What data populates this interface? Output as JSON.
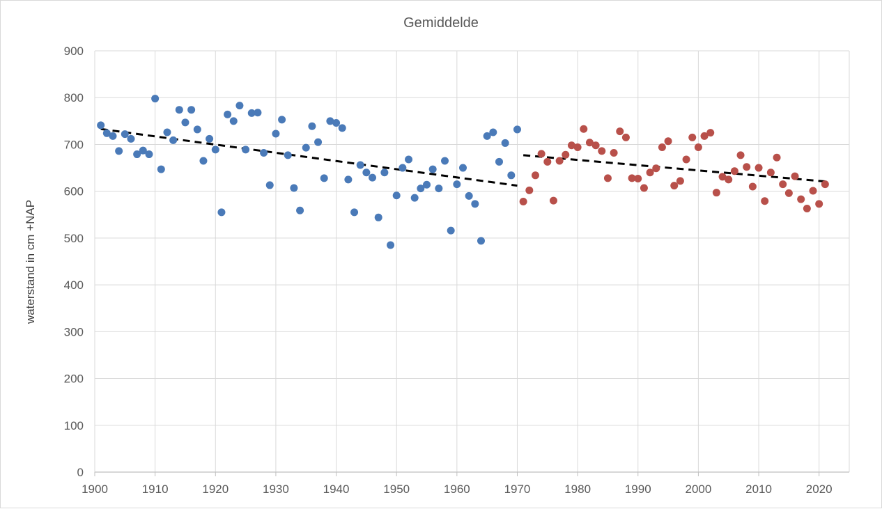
{
  "chart_data": {
    "type": "scatter",
    "title": "Gemiddelde",
    "xlabel": "",
    "ylabel": "waterstand in cm +NAP",
    "xlim": [
      1900,
      2025
    ],
    "ylim": [
      0,
      900
    ],
    "xticks": [
      1900,
      1910,
      1920,
      1930,
      1940,
      1950,
      1960,
      1970,
      1980,
      1990,
      2000,
      2010,
      2020
    ],
    "yticks": [
      0,
      100,
      200,
      300,
      400,
      500,
      600,
      700,
      800,
      900
    ],
    "grid": true,
    "legend": "none",
    "series": [
      {
        "color": "#4a7ab8",
        "points": [
          [
            1901,
            741
          ],
          [
            1902,
            724
          ],
          [
            1903,
            718
          ],
          [
            1904,
            686
          ],
          [
            1905,
            722
          ],
          [
            1906,
            712
          ],
          [
            1907,
            679
          ],
          [
            1908,
            687
          ],
          [
            1909,
            679
          ],
          [
            1910,
            798
          ],
          [
            1911,
            647
          ],
          [
            1912,
            726
          ],
          [
            1913,
            709
          ],
          [
            1914,
            774
          ],
          [
            1915,
            747
          ],
          [
            1916,
            774
          ],
          [
            1917,
            732
          ],
          [
            1918,
            665
          ],
          [
            1919,
            712
          ],
          [
            1920,
            689
          ],
          [
            1921,
            555
          ],
          [
            1922,
            764
          ],
          [
            1923,
            750
          ],
          [
            1924,
            783
          ],
          [
            1925,
            689
          ],
          [
            1926,
            767
          ],
          [
            1927,
            768
          ],
          [
            1928,
            682
          ],
          [
            1929,
            613
          ],
          [
            1930,
            723
          ],
          [
            1931,
            753
          ],
          [
            1932,
            677
          ],
          [
            1933,
            607
          ],
          [
            1934,
            559
          ],
          [
            1935,
            693
          ],
          [
            1936,
            739
          ],
          [
            1937,
            705
          ],
          [
            1938,
            628
          ],
          [
            1939,
            750
          ],
          [
            1940,
            746
          ],
          [
            1941,
            735
          ],
          [
            1942,
            625
          ],
          [
            1943,
            555
          ],
          [
            1944,
            656
          ],
          [
            1945,
            640
          ],
          [
            1946,
            629
          ],
          [
            1947,
            544
          ],
          [
            1948,
            640
          ],
          [
            1949,
            485
          ],
          [
            1950,
            591
          ],
          [
            1951,
            650
          ],
          [
            1952,
            668
          ],
          [
            1953,
            586
          ],
          [
            1954,
            606
          ],
          [
            1955,
            614
          ],
          [
            1956,
            647
          ],
          [
            1957,
            606
          ],
          [
            1958,
            665
          ],
          [
            1959,
            516
          ],
          [
            1960,
            615
          ],
          [
            1961,
            650
          ],
          [
            1962,
            590
          ],
          [
            1963,
            573
          ],
          [
            1964,
            494
          ],
          [
            1965,
            718
          ],
          [
            1966,
            726
          ],
          [
            1967,
            663
          ],
          [
            1968,
            703
          ],
          [
            1969,
            634
          ],
          [
            1970,
            732
          ]
        ]
      },
      {
        "color": "#b8504a",
        "points": [
          [
            1971,
            578
          ],
          [
            1972,
            602
          ],
          [
            1973,
            634
          ],
          [
            1974,
            680
          ],
          [
            1975,
            663
          ],
          [
            1976,
            580
          ],
          [
            1977,
            665
          ],
          [
            1978,
            678
          ],
          [
            1979,
            698
          ],
          [
            1980,
            694
          ],
          [
            1981,
            733
          ],
          [
            1982,
            704
          ],
          [
            1983,
            698
          ],
          [
            1984,
            686
          ],
          [
            1985,
            628
          ],
          [
            1986,
            682
          ],
          [
            1987,
            728
          ],
          [
            1988,
            715
          ],
          [
            1989,
            628
          ],
          [
            1990,
            627
          ],
          [
            1991,
            607
          ],
          [
            1992,
            640
          ],
          [
            1993,
            649
          ],
          [
            1994,
            694
          ],
          [
            1995,
            707
          ],
          [
            1996,
            612
          ],
          [
            1997,
            622
          ],
          [
            1998,
            668
          ],
          [
            1999,
            715
          ],
          [
            2000,
            694
          ],
          [
            2001,
            718
          ],
          [
            2002,
            725
          ],
          [
            2003,
            597
          ],
          [
            2004,
            631
          ],
          [
            2005,
            625
          ],
          [
            2006,
            643
          ],
          [
            2007,
            677
          ],
          [
            2008,
            652
          ],
          [
            2009,
            610
          ],
          [
            2010,
            650
          ],
          [
            2011,
            579
          ],
          [
            2012,
            640
          ],
          [
            2013,
            672
          ],
          [
            2014,
            615
          ],
          [
            2015,
            596
          ],
          [
            2016,
            632
          ],
          [
            2017,
            583
          ],
          [
            2018,
            563
          ],
          [
            2019,
            601
          ],
          [
            2020,
            573
          ],
          [
            2021,
            615
          ]
        ]
      }
    ],
    "trendlines": [
      {
        "color": "#000000",
        "style": "dashed",
        "x": [
          1901,
          1970
        ],
        "y": [
          733,
          612
        ]
      },
      {
        "color": "#000000",
        "style": "dashed",
        "x": [
          1971,
          2021
        ],
        "y": [
          677,
          621
        ]
      }
    ]
  }
}
